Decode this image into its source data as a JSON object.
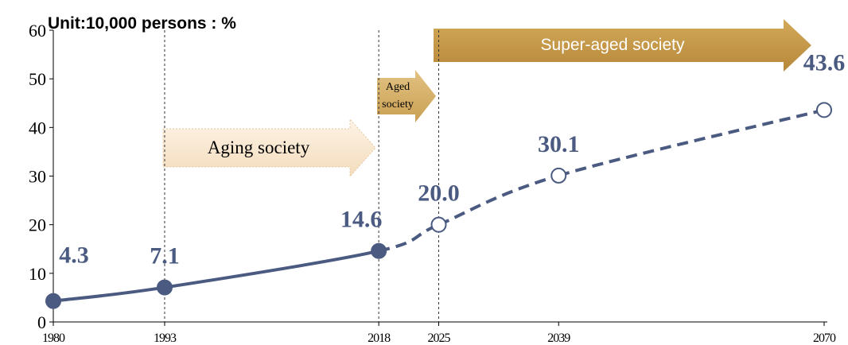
{
  "chart_data": {
    "type": "line",
    "title": "Unit:10,000 persons : %",
    "x": [
      1980,
      1993,
      2018,
      2025,
      2039,
      2070
    ],
    "series": [
      {
        "color": "#4a5a80",
        "values": [
          4.3,
          7.1,
          14.6,
          20.0,
          30.1,
          43.6
        ],
        "value_labels": [
          "4.3",
          "7.1",
          "14.6",
          "20.0",
          "30.1",
          "43.6"
        ],
        "markers": [
          "filled",
          "filled",
          "filled",
          "hollow",
          "hollow",
          "hollow"
        ]
      }
    ],
    "xlim": [
      1980,
      2070
    ],
    "xticks": [
      1980,
      1993,
      2018,
      2025,
      2039,
      2070
    ],
    "ylim": [
      0,
      60
    ],
    "yticks": [
      0,
      10,
      20,
      30,
      40,
      50,
      60
    ],
    "vlines": [
      1993,
      2018,
      2025
    ],
    "annotations": [
      "Aging society",
      "Aged society",
      "Super-aged society"
    ]
  }
}
